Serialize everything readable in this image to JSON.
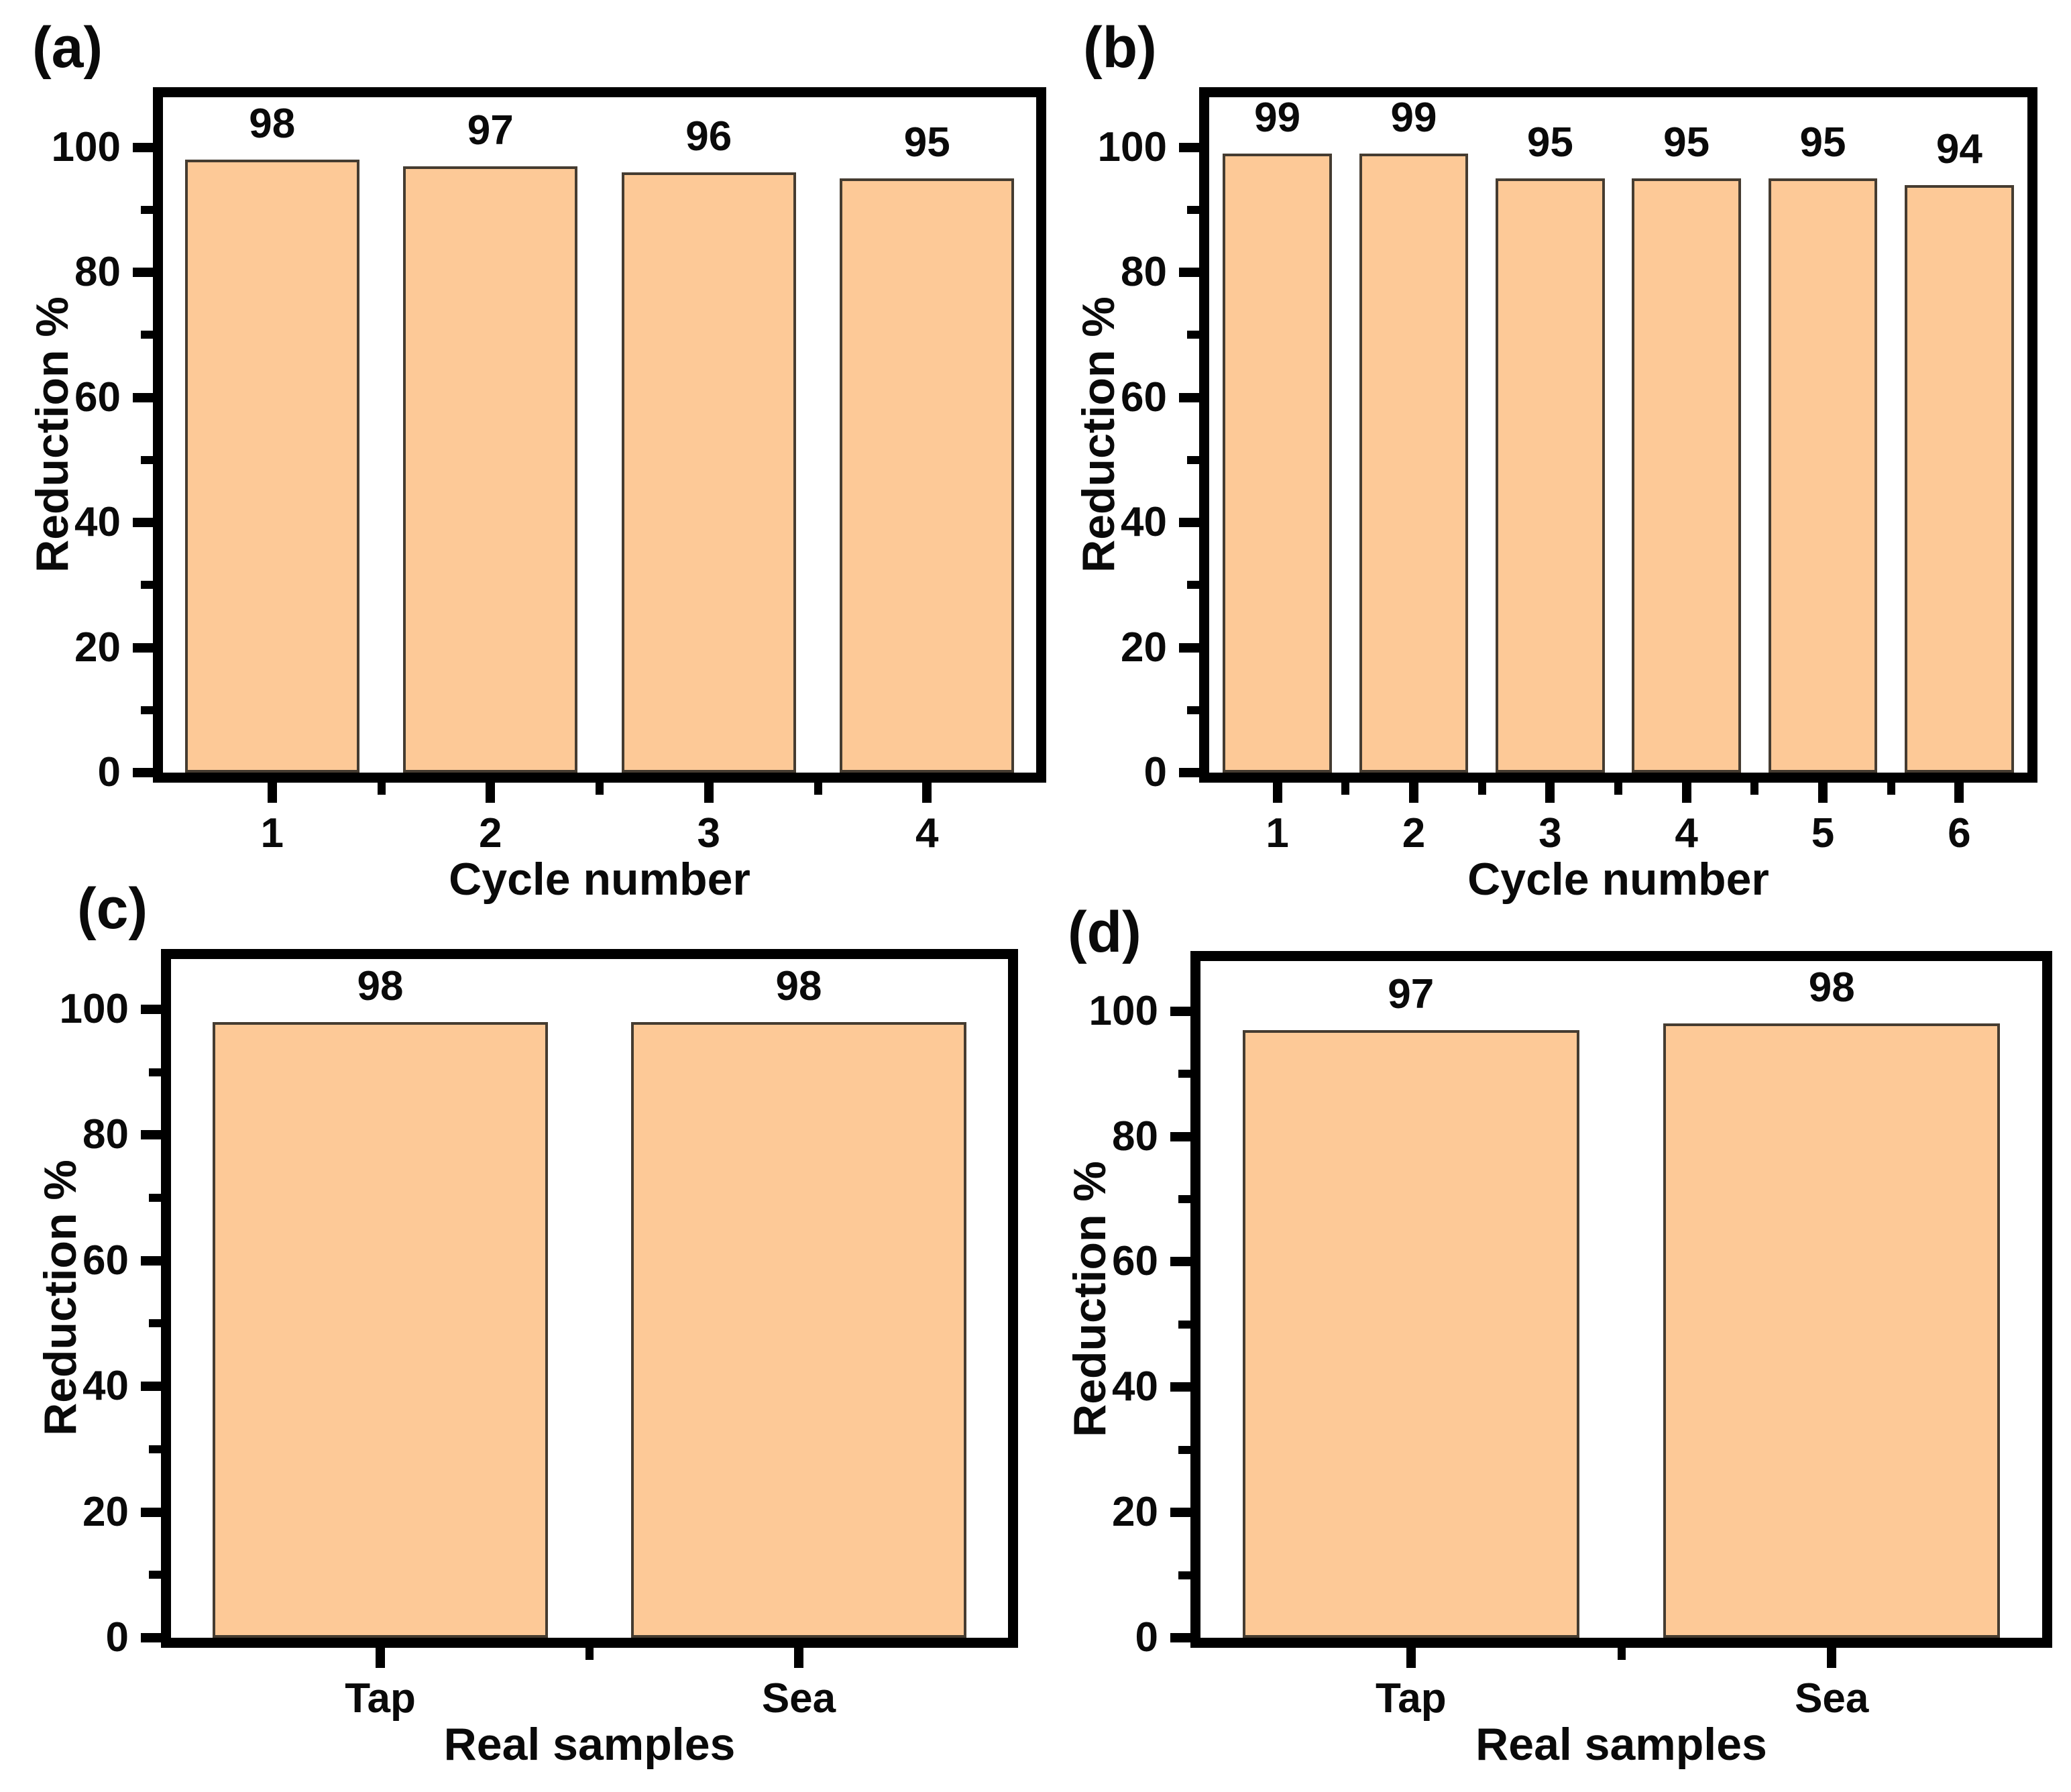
{
  "colors": {
    "background": "#ffffff",
    "bar_fill": "#FDC997",
    "bar_border": "#453C31",
    "axis": "#000000",
    "text": "#0a0a0a"
  },
  "chart_data": [
    {
      "type": "bar",
      "panel": "(a)",
      "categories": [
        "1",
        "2",
        "3",
        "4"
      ],
      "values": [
        98,
        97,
        96,
        95
      ],
      "bar_labels": [
        "98",
        "97",
        "96",
        "95"
      ],
      "xlabel": "Cycle number",
      "ylabel": "Reduction %",
      "ylim": [
        0,
        108
      ],
      "yticks": [
        0,
        20,
        40,
        60,
        80,
        100
      ],
      "yticks_minor": [
        10,
        30,
        50,
        70,
        90
      ],
      "grid": false,
      "legend": null
    },
    {
      "type": "bar",
      "panel": "(b)",
      "categories": [
        "1",
        "2",
        "3",
        "4",
        "5",
        "6"
      ],
      "values": [
        99,
        99,
        95,
        95,
        95,
        94
      ],
      "bar_labels": [
        "99",
        "99",
        "95",
        "95",
        "95",
        "94"
      ],
      "xlabel": "Cycle number",
      "ylabel": "Reduction %",
      "ylim": [
        0,
        108
      ],
      "yticks": [
        0,
        20,
        40,
        60,
        80,
        100
      ],
      "yticks_minor": [
        10,
        30,
        50,
        70,
        90
      ],
      "grid": false,
      "legend": null
    },
    {
      "type": "bar",
      "panel": "(c)",
      "categories": [
        "Tap",
        "Sea"
      ],
      "values": [
        98,
        98
      ],
      "bar_labels": [
        "98",
        "98"
      ],
      "xlabel": "Real samples",
      "ylabel": "Reduction %",
      "ylim": [
        0,
        108
      ],
      "yticks": [
        0,
        20,
        40,
        60,
        80,
        100
      ],
      "yticks_minor": [
        10,
        30,
        50,
        70,
        90
      ],
      "grid": false,
      "legend": null
    },
    {
      "type": "bar",
      "panel": "(d)",
      "categories": [
        "Tap",
        "Sea"
      ],
      "values": [
        97,
        98
      ],
      "bar_labels": [
        "97",
        "98"
      ],
      "xlabel": "Real samples",
      "ylabel": "Reduction %",
      "ylim": [
        0,
        108
      ],
      "yticks": [
        0,
        20,
        40,
        60,
        80,
        100
      ],
      "yticks_minor": [
        10,
        30,
        50,
        70,
        90
      ],
      "grid": false,
      "legend": null
    }
  ]
}
